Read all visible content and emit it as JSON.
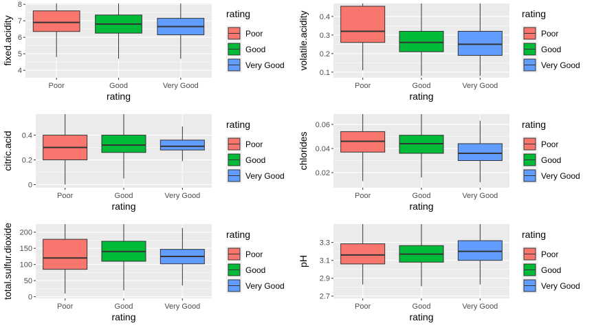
{
  "legend": {
    "title": "rating",
    "entries": [
      "Poor",
      "Good",
      "Very Good"
    ],
    "colors": [
      "#F8766D",
      "#00BA38",
      "#619CFF"
    ]
  },
  "chart_data": [
    {
      "type": "box",
      "xlabel": "rating",
      "ylabel": "fixed.acidity",
      "categories": [
        "Poor",
        "Good",
        "Very Good"
      ],
      "ylim": [
        3.55,
        8.05
      ],
      "yticks": [
        4,
        5,
        6,
        7,
        8
      ],
      "boxes": [
        {
          "min": 4.8,
          "q1": 6.35,
          "median": 6.9,
          "q3": 7.6,
          "max": 8.05
        },
        {
          "min": 4.7,
          "q1": 6.25,
          "median": 6.8,
          "q3": 7.35,
          "max": 8.05
        },
        {
          "min": 4.7,
          "q1": 6.15,
          "median": 6.65,
          "q3": 7.15,
          "max": 8.05
        }
      ]
    },
    {
      "type": "box",
      "xlabel": "rating",
      "ylabel": "volatile.acidity",
      "categories": [
        "Poor",
        "Good",
        "Very Good"
      ],
      "ylim": [
        0.07,
        0.47
      ],
      "yticks": [
        0.1,
        0.2,
        0.3,
        0.4
      ],
      "boxes": [
        {
          "min": 0.11,
          "q1": 0.26,
          "median": 0.32,
          "q3": 0.455,
          "max": 0.47
        },
        {
          "min": 0.08,
          "q1": 0.21,
          "median": 0.26,
          "q3": 0.32,
          "max": 0.47
        },
        {
          "min": 0.08,
          "q1": 0.19,
          "median": 0.25,
          "q3": 0.32,
          "max": 0.47
        }
      ]
    },
    {
      "type": "box",
      "xlabel": "rating",
      "ylabel": "citric.acid",
      "categories": [
        "Poor",
        "Good",
        "Very Good"
      ],
      "ylim": [
        -0.025,
        0.57
      ],
      "yticks": [
        0.0,
        0.2,
        0.4
      ],
      "boxes": [
        {
          "min": 0.0,
          "q1": 0.2,
          "median": 0.3,
          "q3": 0.4,
          "max": 0.57
        },
        {
          "min": 0.05,
          "q1": 0.26,
          "median": 0.32,
          "q3": 0.4,
          "max": 0.57
        },
        {
          "min": 0.19,
          "q1": 0.28,
          "median": 0.31,
          "q3": 0.36,
          "max": 0.47
        }
      ]
    },
    {
      "type": "box",
      "xlabel": "rating",
      "ylabel": "chlorides",
      "categories": [
        "Poor",
        "Good",
        "Very Good"
      ],
      "ylim": [
        0.0075,
        0.0685
      ],
      "yticks": [
        0.02,
        0.04,
        0.06
      ],
      "boxes": [
        {
          "min": 0.013,
          "q1": 0.037,
          "median": 0.046,
          "q3": 0.054,
          "max": 0.0685
        },
        {
          "min": 0.016,
          "q1": 0.036,
          "median": 0.044,
          "q3": 0.051,
          "max": 0.0685
        },
        {
          "min": 0.012,
          "q1": 0.03,
          "median": 0.036,
          "q3": 0.044,
          "max": 0.063
        }
      ]
    },
    {
      "type": "box",
      "xlabel": "rating",
      "ylabel": "total.sulfur.dioxide",
      "categories": [
        "Poor",
        "Good",
        "Very Good"
      ],
      "ylim": [
        -5,
        225
      ],
      "yticks": [
        0,
        50,
        100,
        150,
        200
      ],
      "boxes": [
        {
          "min": 10,
          "q1": 85,
          "median": 120,
          "q3": 178,
          "max": 225
        },
        {
          "min": 20,
          "q1": 110,
          "median": 140,
          "q3": 172,
          "max": 225
        },
        {
          "min": 35,
          "q1": 102,
          "median": 125,
          "q3": 147,
          "max": 213
        }
      ]
    },
    {
      "type": "box",
      "xlabel": "rating",
      "ylabel": "pH",
      "categories": [
        "Poor",
        "Good",
        "Very Good"
      ],
      "ylim": [
        2.675,
        3.505
      ],
      "yticks": [
        2.7,
        2.9,
        3.1,
        3.3
      ],
      "yticklabels": [
        "2.7",
        "2.9",
        "3.1",
        "3.3"
      ],
      "boxes": [
        {
          "min": 2.83,
          "q1": 3.06,
          "median": 3.16,
          "q3": 3.285,
          "max": 3.505
        },
        {
          "min": 2.81,
          "q1": 3.08,
          "median": 3.17,
          "q3": 3.265,
          "max": 3.505
        },
        {
          "min": 2.83,
          "q1": 3.1,
          "median": 3.2,
          "q3": 3.32,
          "max": 3.505
        }
      ]
    }
  ]
}
